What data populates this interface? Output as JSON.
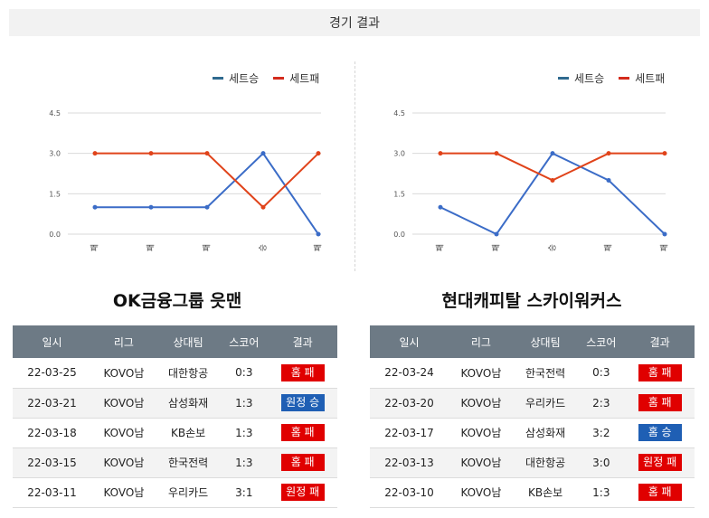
{
  "header": {
    "title": "경기 결과"
  },
  "legend": {
    "set_win": "세트승",
    "set_loss": "세트패"
  },
  "colors": {
    "set_win": "#3b6cc7",
    "set_loss": "#e0431a",
    "loss_badge": "#e00000",
    "win_badge": "#1f5fb4",
    "table_header": "#6d7a85"
  },
  "columns": [
    "일시",
    "리그",
    "상대팀",
    "스코어",
    "결과"
  ],
  "teams": [
    {
      "name": "OK금융그룹 읏맨",
      "chart_data": {
        "type": "line",
        "categories": [
          "패",
          "패",
          "패",
          "승",
          "패"
        ],
        "series": [
          {
            "name": "세트승",
            "values": [
              1,
              1,
              1,
              3,
              0
            ]
          },
          {
            "name": "세트패",
            "values": [
              3,
              3,
              3,
              1,
              3
            ]
          }
        ],
        "yticks": [
          "4.5",
          "3.0",
          "1.5",
          "0.0"
        ],
        "ylim": [
          0,
          4.5
        ],
        "grid": true,
        "legend": "top-right"
      },
      "rows": [
        {
          "date": "22-03-25",
          "league": "KOVO남",
          "opponent": "대한항공",
          "score": "0:3",
          "result": "홈 패",
          "outcome": "loss"
        },
        {
          "date": "22-03-21",
          "league": "KOVO남",
          "opponent": "삼성화재",
          "score": "1:3",
          "result": "원정 승",
          "outcome": "win"
        },
        {
          "date": "22-03-18",
          "league": "KOVO남",
          "opponent": "KB손보",
          "score": "1:3",
          "result": "홈 패",
          "outcome": "loss"
        },
        {
          "date": "22-03-15",
          "league": "KOVO남",
          "opponent": "한국전력",
          "score": "1:3",
          "result": "홈 패",
          "outcome": "loss"
        },
        {
          "date": "22-03-11",
          "league": "KOVO남",
          "opponent": "우리카드",
          "score": "3:1",
          "result": "원정 패",
          "outcome": "loss"
        }
      ]
    },
    {
      "name": "현대캐피탈 스카이워커스",
      "chart_data": {
        "type": "line",
        "categories": [
          "패",
          "패",
          "승",
          "패",
          "패"
        ],
        "series": [
          {
            "name": "세트승",
            "values": [
              1,
              0,
              3,
              2,
              0
            ]
          },
          {
            "name": "세트패",
            "values": [
              3,
              3,
              2,
              3,
              3
            ]
          }
        ],
        "yticks": [
          "4.5",
          "3.0",
          "1.5",
          "0.0"
        ],
        "ylim": [
          0,
          4.5
        ],
        "grid": true,
        "legend": "top-right"
      },
      "rows": [
        {
          "date": "22-03-24",
          "league": "KOVO남",
          "opponent": "한국전력",
          "score": "0:3",
          "result": "홈 패",
          "outcome": "loss"
        },
        {
          "date": "22-03-20",
          "league": "KOVO남",
          "opponent": "우리카드",
          "score": "2:3",
          "result": "홈 패",
          "outcome": "loss"
        },
        {
          "date": "22-03-17",
          "league": "KOVO남",
          "opponent": "삼성화재",
          "score": "3:2",
          "result": "홈 승",
          "outcome": "win"
        },
        {
          "date": "22-03-13",
          "league": "KOVO남",
          "opponent": "대한항공",
          "score": "3:0",
          "result": "원정 패",
          "outcome": "loss"
        },
        {
          "date": "22-03-10",
          "league": "KOVO남",
          "opponent": "KB손보",
          "score": "1:3",
          "result": "홈 패",
          "outcome": "loss"
        }
      ]
    }
  ]
}
